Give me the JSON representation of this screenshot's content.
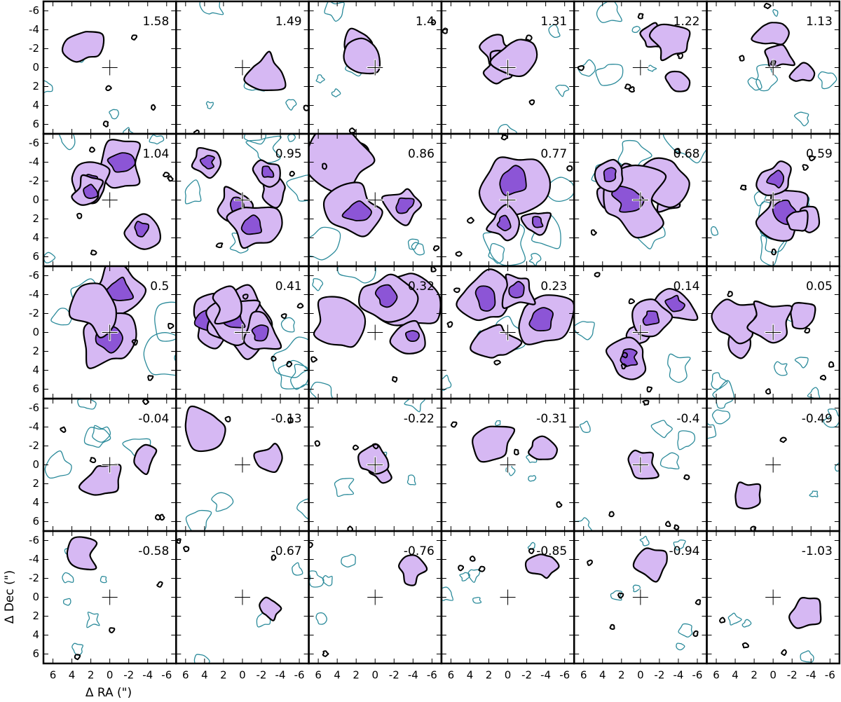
{
  "chart_data": {
    "type": "channel-map",
    "panels": [
      1.58,
      1.49,
      1.4,
      1.31,
      1.22,
      1.13,
      1.04,
      0.95,
      0.86,
      0.77,
      0.68,
      0.59,
      0.5,
      0.41,
      0.32,
      0.23,
      0.14,
      0.05,
      -0.04,
      -0.13,
      -0.22,
      -0.31,
      -0.4,
      -0.49,
      -0.58,
      -0.67,
      -0.76,
      -0.85,
      -0.94,
      -1.03
    ],
    "columns": 6,
    "xlabel": "Δ RA (\")",
    "ylabel": "Δ Dec (\")",
    "xlim": [
      7,
      -7
    ],
    "ylim": [
      7,
      -7
    ],
    "xticks": [
      6,
      4,
      2,
      0,
      -2,
      -4,
      -6
    ],
    "yticks": [
      -6,
      -4,
      -2,
      0,
      2,
      4,
      6
    ]
  }
}
